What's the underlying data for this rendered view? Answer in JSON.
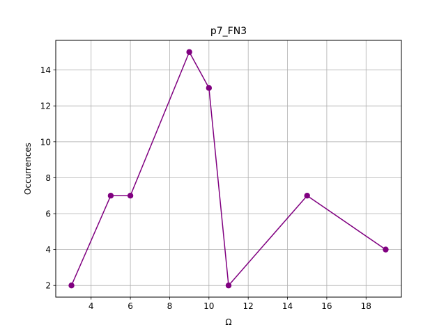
{
  "chart_data": {
    "type": "line",
    "title": "p7_FN3",
    "xlabel": "Ω",
    "ylabel": "Occurrences",
    "xlim": [
      2.2,
      19.8
    ],
    "ylim": [
      1.35,
      15.65
    ],
    "xticks": [
      4,
      6,
      8,
      10,
      12,
      14,
      16,
      18
    ],
    "yticks": [
      2,
      4,
      6,
      8,
      10,
      12,
      14
    ],
    "grid": true,
    "series": [
      {
        "color": "#800080",
        "marker": "circle",
        "x": [
          3,
          5,
          6,
          9,
          10,
          11,
          15,
          19
        ],
        "y": [
          2,
          7,
          7,
          15,
          13,
          2,
          7,
          4
        ]
      }
    ]
  }
}
